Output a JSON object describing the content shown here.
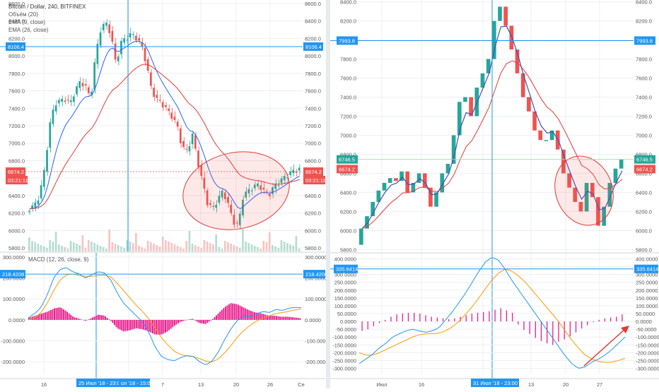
{
  "colors": {
    "up": "#26a69a",
    "down": "#ef5350",
    "ema_fast": "#2962ff",
    "ema_slow": "#e53935",
    "macd": "#2196f3",
    "signal": "#ff9800",
    "hist": "#e91e8c",
    "crosshair": "#2196f3",
    "annotation": "#e53935",
    "grid": "#eceff2",
    "axis_text": "#555555",
    "panel_border": "#cfd3d9"
  },
  "left": {
    "legend": {
      "title": "Bitcoin / Dollar, 240, BITFINEX",
      "volume": "Объём (20)",
      "ema9": "EMA (9, close)",
      "ema26": "EMA (26, close)"
    },
    "macd_legend": "MACD (12, 26, close, 9)",
    "price_ticks": [
      "8600.0",
      "8400.0",
      "8200.0",
      "8000.0",
      "7800.0",
      "7600.0",
      "7400.0",
      "7200.0",
      "7000.0",
      "6800.0",
      "6600.0",
      "6400.0",
      "6200.0",
      "6000.0",
      "5800.0"
    ],
    "macd_ticks": [
      "300.0000",
      "200.0000",
      "100.0000",
      "0.0000",
      "-100.0000",
      "-200.0000"
    ],
    "x_ticks": [
      "16",
      "7",
      "13",
      "20",
      "26",
      "Се"
    ],
    "crosshair_price": "8106.4",
    "crosshair_macd": "218.4208",
    "last_price": "6674.2",
    "countdown": "03:21:11",
    "x_tag_1": "25 Июл '18 - 23:00",
    "x_tag_2": "ол '18 - 15:00",
    "chart_data": {
      "type": "candlestick",
      "title": "Bitcoin / Dollar, 240, BITFINEX",
      "ylim": [
        5760,
        8640
      ],
      "price_path": [
        6250,
        6280,
        6400,
        6700,
        7200,
        7450,
        7480,
        7500,
        7450,
        7600,
        7700,
        7650,
        7500,
        8000,
        8300,
        8380,
        8250,
        7900,
        8150,
        8200,
        8250,
        8200,
        8120,
        7900,
        7600,
        7500,
        7450,
        7380,
        7300,
        7200,
        6950,
        6900,
        7100,
        6800,
        6550,
        6300,
        6250,
        6350,
        6450,
        6300,
        6100,
        6050,
        6400,
        6450,
        6500,
        6520,
        6450,
        6400,
        6500,
        6550,
        6600,
        6650,
        6680,
        6700
      ],
      "macd_ylim": [
        -260,
        320
      ],
      "macd_path": [
        10,
        30,
        60,
        120,
        200,
        240,
        250,
        230,
        220,
        200,
        215,
        230,
        225,
        190,
        130,
        80,
        50,
        20,
        -10,
        -60,
        -130,
        -175,
        -190,
        -195,
        -180,
        -170,
        -175,
        -200,
        -215,
        -195,
        -150,
        -90,
        -40,
        0,
        20,
        15,
        30,
        40,
        35,
        50,
        45,
        55,
        60,
        58
      ],
      "signal_path": [
        0,
        10,
        35,
        80,
        140,
        190,
        215,
        220,
        212,
        208,
        208,
        212,
        214,
        205,
        175,
        140,
        105,
        70,
        40,
        5,
        -40,
        -85,
        -120,
        -150,
        -165,
        -172,
        -175,
        -185,
        -198,
        -200,
        -185,
        -155,
        -120,
        -80,
        -50,
        -25,
        -5,
        10,
        20,
        30,
        35,
        40,
        48,
        52
      ],
      "histogram": [
        10,
        20,
        30,
        40,
        55,
        60,
        40,
        15,
        5,
        -5,
        10,
        25,
        20,
        -5,
        -40,
        -55,
        -50,
        -40,
        -45,
        -55,
        -70,
        -70,
        -55,
        -30,
        -10,
        0,
        5,
        -15,
        -20,
        0,
        30,
        60,
        80,
        75,
        60,
        45,
        35,
        30,
        20,
        20,
        15,
        15,
        12,
        8
      ],
      "ema_windows": [
        9,
        26
      ],
      "volume_window": 20
    }
  },
  "right": {
    "price_ticks": [
      "8400.0",
      "8200.0",
      "8000.0",
      "7800.0",
      "7600.0",
      "7400.0",
      "7200.0",
      "7000.0",
      "6800.0",
      "6600.0",
      "6400.0",
      "6200.0",
      "6000.0",
      "5800.0"
    ],
    "macd_ticks": [
      "400.0000",
      "350.0000",
      "300.0000",
      "250.0000",
      "200.0000",
      "150.0000",
      "100.0000",
      "50.0000",
      "0.0000",
      "-50.0000",
      "-100.0000",
      "-150.0000",
      "-200.0000",
      "-250.0000",
      "-300.0000"
    ],
    "x_ticks": [
      "Июл",
      "16",
      "23",
      "15:00",
      "13",
      "20",
      "27"
    ],
    "crosshair_price": "7993.8",
    "crosshair_macd": "335.6414",
    "tag_green": "6746.5",
    "tag_red": "6674.2",
    "x_tag": "31 Июл '18 - 23:00",
    "chart_data": {
      "type": "candlestick",
      "ylim": [
        5780,
        8420
      ],
      "candles": [
        {
          "o": 5850,
          "c": 6020
        },
        {
          "o": 6020,
          "c": 6150
        },
        {
          "o": 6150,
          "c": 6300
        },
        {
          "o": 6300,
          "c": 6420
        },
        {
          "o": 6420,
          "c": 6500
        },
        {
          "o": 6500,
          "c": 6550
        },
        {
          "o": 6550,
          "c": 6520
        },
        {
          "o": 6520,
          "c": 6620
        },
        {
          "o": 6620,
          "c": 6400
        },
        {
          "o": 6400,
          "c": 6500
        },
        {
          "o": 6500,
          "c": 6600
        },
        {
          "o": 6600,
          "c": 6450
        },
        {
          "o": 6450,
          "c": 6250
        },
        {
          "o": 6250,
          "c": 6400
        },
        {
          "o": 6400,
          "c": 6600
        },
        {
          "o": 6600,
          "c": 6700
        },
        {
          "o": 6700,
          "c": 7000
        },
        {
          "o": 7000,
          "c": 7350
        },
        {
          "o": 7350,
          "c": 7400
        },
        {
          "o": 7400,
          "c": 7200
        },
        {
          "o": 7200,
          "c": 7500
        },
        {
          "o": 7500,
          "c": 7650
        },
        {
          "o": 7650,
          "c": 7800
        },
        {
          "o": 7800,
          "c": 8200
        },
        {
          "o": 8200,
          "c": 8350
        },
        {
          "o": 8350,
          "c": 8150
        },
        {
          "o": 8150,
          "c": 7900
        },
        {
          "o": 7900,
          "c": 7650
        },
        {
          "o": 7650,
          "c": 7400
        },
        {
          "o": 7400,
          "c": 7250
        },
        {
          "o": 7250,
          "c": 7050
        },
        {
          "o": 7050,
          "c": 6950
        },
        {
          "o": 6950,
          "c": 6950
        },
        {
          "o": 6950,
          "c": 7050
        },
        {
          "o": 7050,
          "c": 6850
        },
        {
          "o": 6850,
          "c": 6600
        },
        {
          "o": 6600,
          "c": 6450
        },
        {
          "o": 6450,
          "c": 6300
        },
        {
          "o": 6300,
          "c": 6200
        },
        {
          "o": 6200,
          "c": 6500
        },
        {
          "o": 6500,
          "c": 6350
        },
        {
          "o": 6350,
          "c": 6050
        },
        {
          "o": 6050,
          "c": 6250
        },
        {
          "o": 6250,
          "c": 6500
        },
        {
          "o": 6500,
          "c": 6650
        },
        {
          "o": 6650,
          "c": 6746
        }
      ],
      "macd_ylim": [
        -320,
        420
      ],
      "macd_path": [
        -270,
        -240,
        -210,
        -170,
        -140,
        -100,
        -80,
        -60,
        -50,
        -60,
        -70,
        -60,
        -40,
        10,
        60,
        120,
        180,
        250,
        320,
        380,
        410,
        390,
        330,
        260,
        200,
        140,
        80,
        20,
        -40,
        -100,
        -160,
        -220,
        -270,
        -300,
        -290,
        -260,
        -240,
        -215,
        -180,
        -140,
        -100
      ],
      "signal_path": [
        -200,
        -215,
        -215,
        -200,
        -180,
        -160,
        -140,
        -120,
        -100,
        -85,
        -80,
        -78,
        -75,
        -60,
        -35,
        0,
        45,
        95,
        150,
        210,
        265,
        310,
        335,
        320,
        290,
        250,
        200,
        150,
        100,
        50,
        0,
        -60,
        -120,
        -170,
        -215,
        -240,
        -255,
        -262,
        -260,
        -250,
        -235
      ],
      "histogram": [
        -60,
        -50,
        -30,
        -10,
        10,
        30,
        45,
        50,
        55,
        55,
        50,
        40,
        30,
        25,
        20,
        15,
        20,
        30,
        40,
        50,
        55,
        60,
        65,
        75,
        85,
        70,
        55,
        -20,
        -55,
        -80,
        -105,
        -125,
        -140,
        -150,
        -130,
        -115,
        -95,
        -70,
        -45,
        -25,
        -5,
        10,
        20,
        25,
        30,
        45
      ]
    }
  }
}
